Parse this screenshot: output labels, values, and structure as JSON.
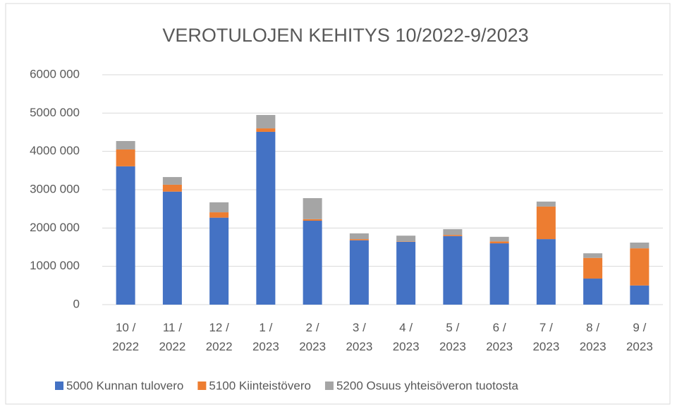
{
  "chart_data": {
    "type": "stacked_bar",
    "title": "VEROTULOJEN KEHITYS 10/2022-9/2023",
    "categories": [
      "10 / 2022",
      "11 / 2022",
      "12 / 2022",
      "1 / 2023",
      "2 / 2023",
      "3 / 2023",
      "4 / 2023",
      "5 / 2023",
      "6 / 2023",
      "7 / 2023",
      "8 / 2023",
      "9 / 2023"
    ],
    "series": [
      {
        "name": "5000 Kunnan tulovero",
        "color": "#4472c4",
        "values": [
          3610000,
          2950000,
          2270000,
          4510000,
          2190000,
          1680000,
          1640000,
          1790000,
          1600000,
          1710000,
          680000,
          500000
        ]
      },
      {
        "name": "5100 Kiinteistövero",
        "color": "#ed7d31",
        "values": [
          440000,
          180000,
          140000,
          90000,
          40000,
          30000,
          10000,
          30000,
          50000,
          850000,
          540000,
          970000
        ]
      },
      {
        "name": "5200 Osuus yhteisöveron tuotosta",
        "color": "#a5a5a5",
        "values": [
          220000,
          200000,
          260000,
          350000,
          550000,
          150000,
          150000,
          150000,
          120000,
          130000,
          120000,
          150000
        ]
      }
    ],
    "ylim": [
      0,
      6000000
    ],
    "yticks": [
      0,
      {
        "value": 1000000,
        "label": "1000 000"
      },
      {
        "value": 2000000,
        "label": "2000 000"
      },
      {
        "value": 3000000,
        "label": "3000 000"
      },
      {
        "value": 4000000,
        "label": "4000 000"
      },
      {
        "value": 5000000,
        "label": "5000 000"
      },
      {
        "value": 6000000,
        "label": "6000 000"
      }
    ],
    "grid": true,
    "legend": "bottom"
  }
}
